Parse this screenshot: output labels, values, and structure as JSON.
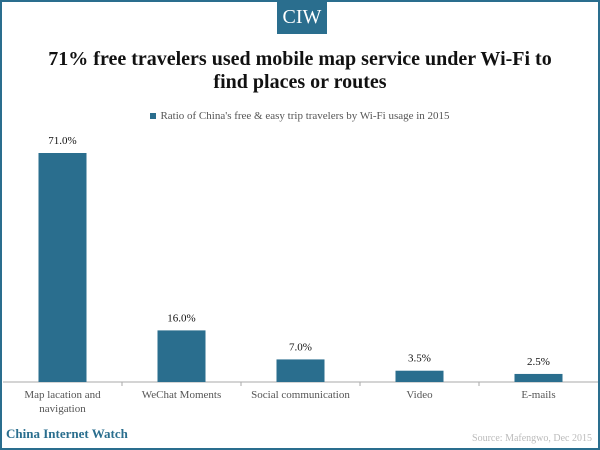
{
  "logo": "CIW",
  "chart_data": {
    "type": "bar",
    "title": "71% free travelers used mobile map service under Wi-Fi to find places or routes",
    "legend": "Ratio of China's free & easy trip travelers by Wi-Fi usage in 2015",
    "categories": [
      "Map lacation and navigation",
      "WeChat Moments",
      "Social communication",
      "Video",
      "E-mails"
    ],
    "values": [
      71.0,
      16.0,
      7.0,
      3.5,
      2.5
    ],
    "labels": [
      "71.0%",
      "16.0%",
      "7.0%",
      "3.5%",
      "2.5%"
    ],
    "color": "#2a6e8e",
    "ylim": [
      0,
      75
    ],
    "xlabel": "",
    "ylabel": "",
    "grid": false
  },
  "brand": "China Internet Watch",
  "source": "Source: Mafengwo, Dec 2015"
}
